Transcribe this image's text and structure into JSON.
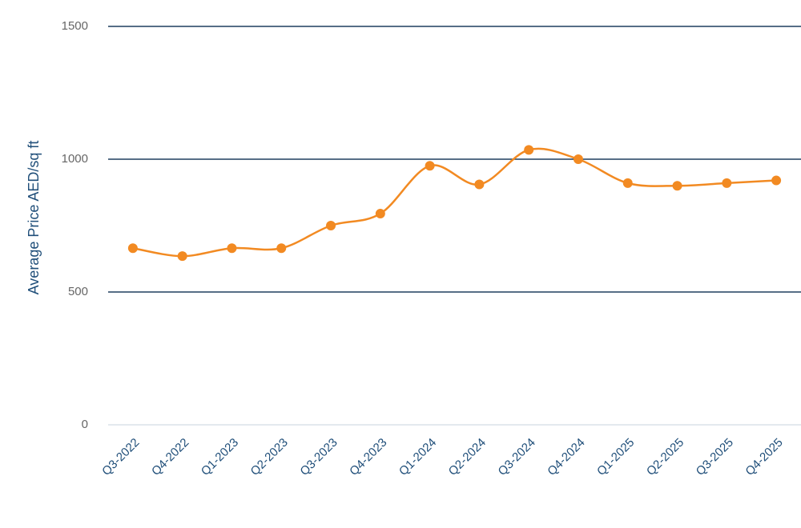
{
  "chart_data": {
    "type": "line",
    "y_label": "Average Price AED/sq ft",
    "categories": [
      "Q3-2022",
      "Q4-2022",
      "Q1-2023",
      "Q2-2023",
      "Q3-2023",
      "Q4-2023",
      "Q1-2024",
      "Q2-2024",
      "Q3-2024",
      "Q4-2024",
      "Q1-2025",
      "Q2-2025",
      "Q3-2025",
      "Q4-2025"
    ],
    "series": [
      {
        "name": "Average Price",
        "color": "#f28a22",
        "values": [
          665,
          635,
          665,
          665,
          750,
          795,
          975,
          905,
          1035,
          1000,
          910,
          900,
          910,
          920
        ]
      }
    ],
    "ylim": [
      0,
      1500
    ],
    "yticks": [
      0,
      500,
      1000,
      1500
    ],
    "grid": true,
    "smooth": true
  }
}
